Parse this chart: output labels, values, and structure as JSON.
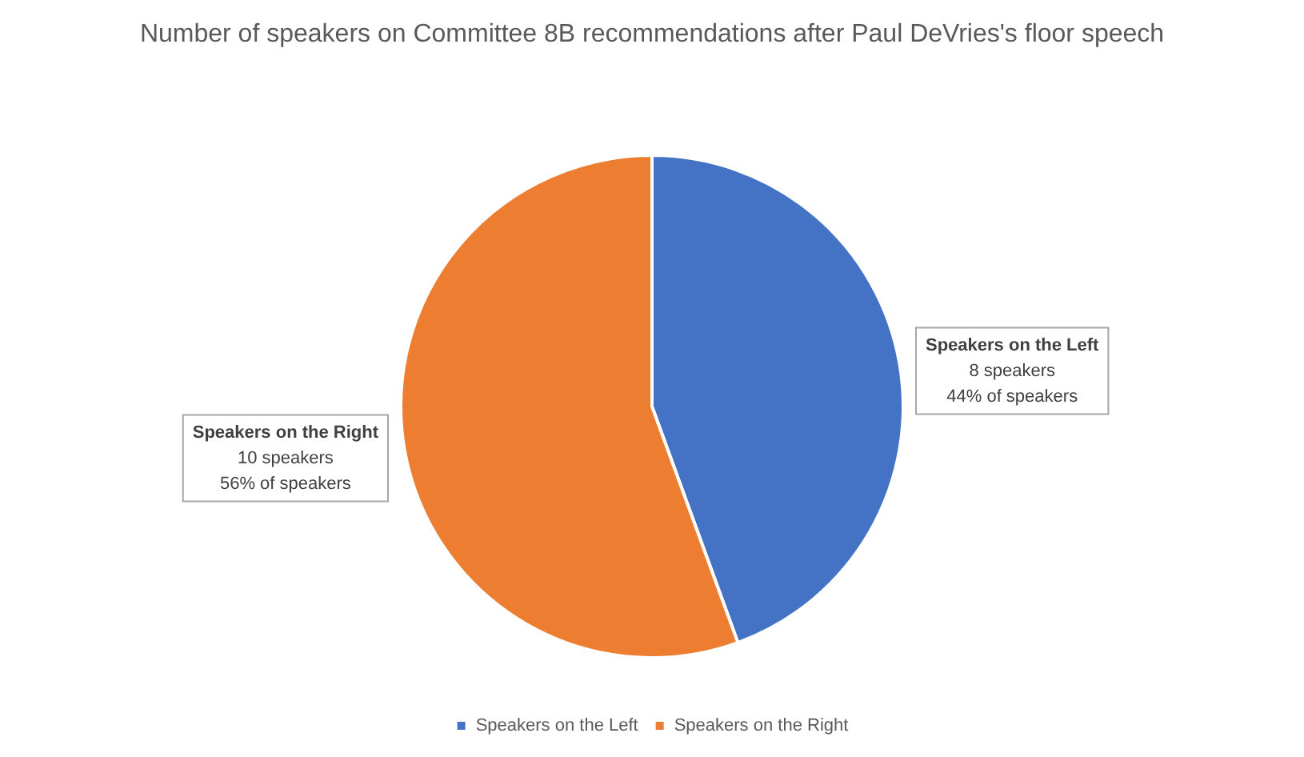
{
  "chart_data": {
    "type": "pie",
    "title": "Number of speakers on Committee 8B recommendations after Paul DeVries's floor speech",
    "categories": [
      "Speakers on the Left",
      "Speakers on the Right"
    ],
    "values": [
      8,
      10
    ],
    "colors": [
      "#4472c4",
      "#ed7d31"
    ],
    "value_labels": [
      "8 speakers\n44% of speakers",
      "10 speakers\n56% of speakers"
    ],
    "legend": "bottom"
  }
}
